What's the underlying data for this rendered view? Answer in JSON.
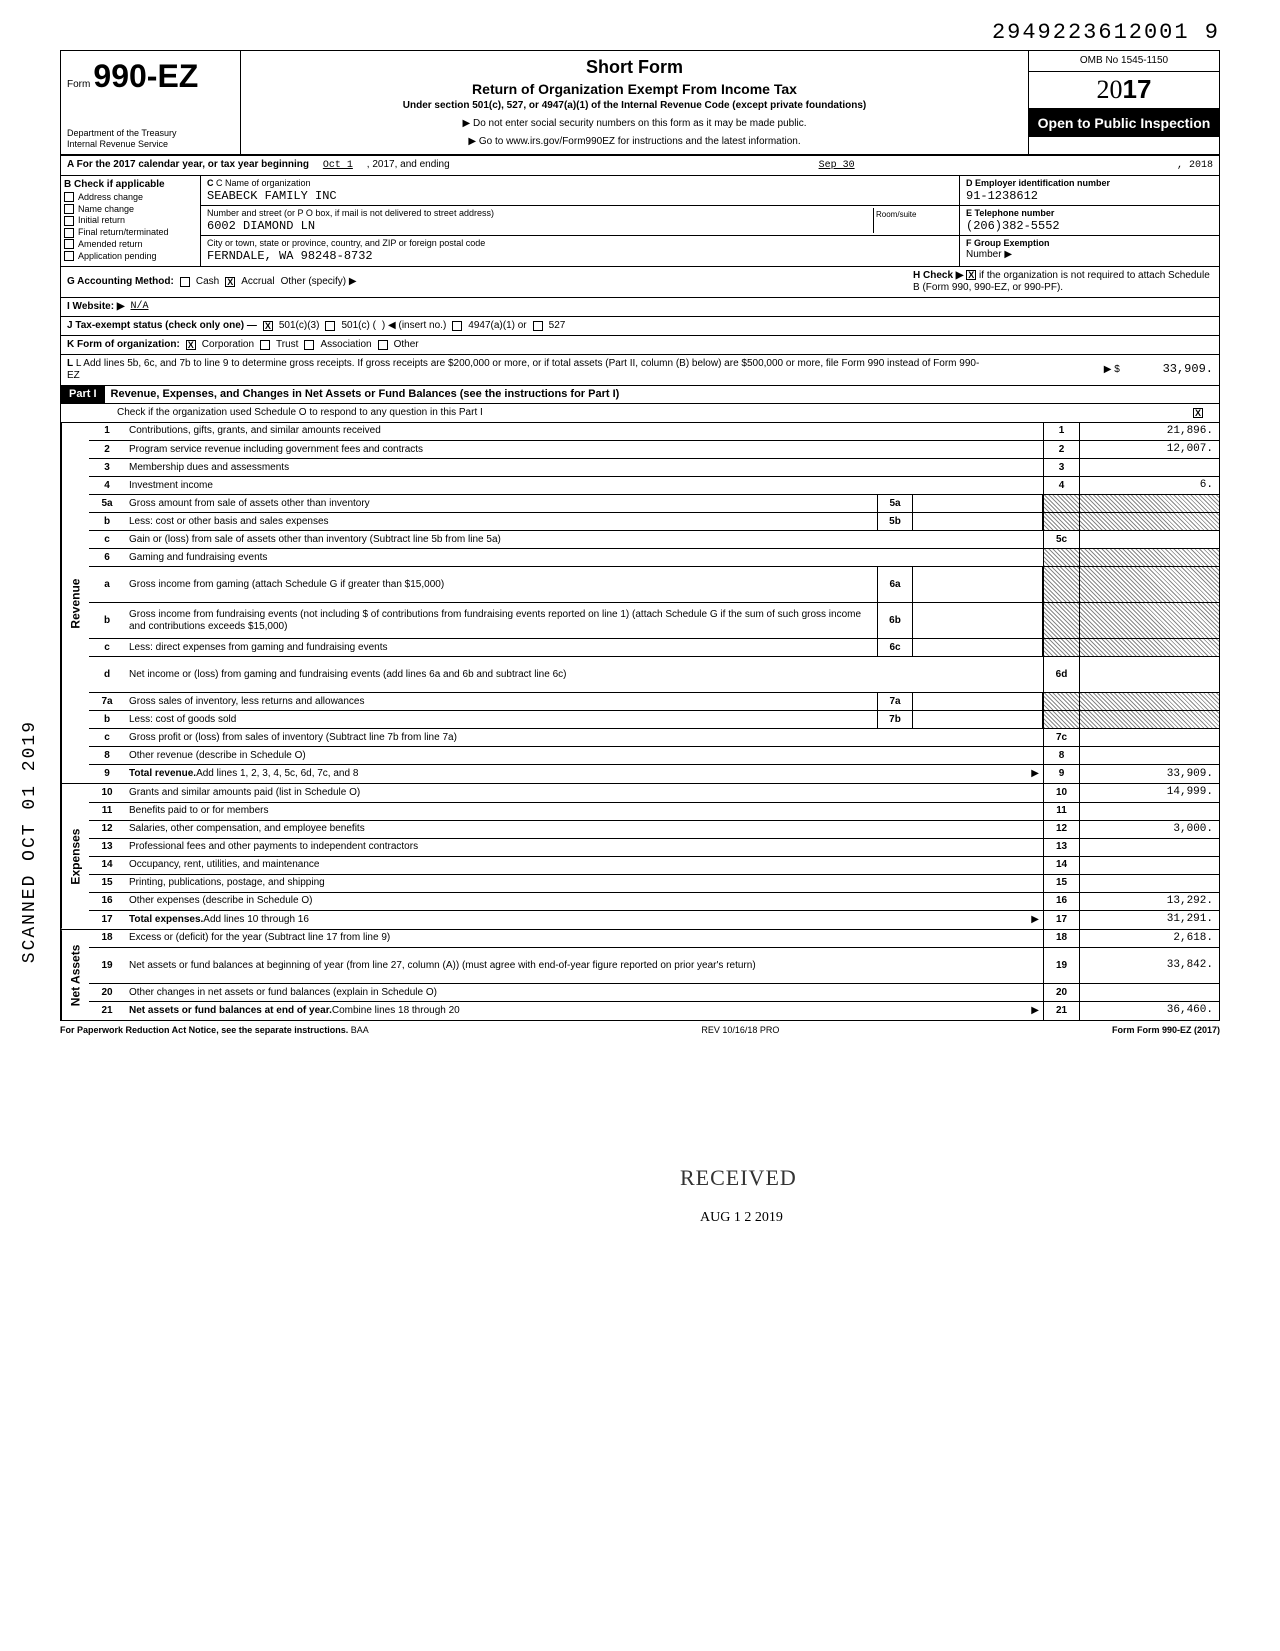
{
  "top_id": "2949223612001 9",
  "form": {
    "prefix": "Form",
    "number": "990-EZ",
    "dept": "Department of the Treasury\nInternal Revenue Service"
  },
  "title": {
    "short": "Short Form",
    "main": "Return of Organization Exempt From Income Tax",
    "under": "Under section 501(c), 527, or 4947(a)(1) of the Internal Revenue Code (except private foundations)",
    "note1": "▶ Do not enter social security numbers on this form as it may be made public.",
    "note2": "▶ Go to www.irs.gov/Form990EZ for instructions and the latest information."
  },
  "right": {
    "omb": "OMB No 1545-1150",
    "year_prefix": "20",
    "year_suffix": "17",
    "inspection": "Open to Public Inspection"
  },
  "line_a": {
    "text": "A For the 2017 calendar year, or tax year beginning",
    "begin": "Oct 1",
    "mid": ", 2017, and ending",
    "end_month": "Sep 30",
    "end_year": ", 2018"
  },
  "section_b": {
    "header": "B Check if applicable",
    "items": [
      "Address change",
      "Name change",
      "Initial return",
      "Final return/terminated",
      "Amended return",
      "Application pending"
    ]
  },
  "section_c": {
    "name_lbl": "C Name of organization",
    "name": "SEABECK FAMILY INC",
    "addr_lbl": "Number and street (or P O box, if mail is not delivered to street address)",
    "addr": "6002 DIAMOND LN",
    "room_lbl": "Room/suite",
    "city_lbl": "City or town, state or province, country, and ZIP or foreign postal code",
    "city": "FERNDALE, WA 98248-8732"
  },
  "section_d": {
    "lbl": "D Employer identification number",
    "val": "91-1238612"
  },
  "section_e": {
    "lbl": "E Telephone number",
    "val": "(206)382-5552"
  },
  "section_f": {
    "lbl": "F Group Exemption",
    "lbl2": "Number ▶",
    "val": ""
  },
  "line_g": {
    "prefix": "G Accounting Method:",
    "cash": "Cash",
    "accrual": "Accrual",
    "other": "Other (specify) ▶"
  },
  "line_h": {
    "text": "H Check ▶",
    "after": "if the organization is not required to attach Schedule B (Form 990, 990-EZ, or 990-PF)."
  },
  "line_i": {
    "lbl": "I Website: ▶",
    "val": "N/A"
  },
  "line_j": {
    "prefix": "J Tax-exempt status (check only one) —",
    "opt1": "501(c)(3)",
    "opt2": "501(c) (",
    "insert": ") ◀ (insert no.)",
    "opt3": "4947(a)(1) or",
    "opt4": "527"
  },
  "line_k": {
    "prefix": "K Form of organization:",
    "opts": [
      "Corporation",
      "Trust",
      "Association",
      "Other"
    ]
  },
  "line_l": {
    "text": "L Add lines 5b, 6c, and 7b to line 9 to determine gross receipts. If gross receipts are $200,000 or more, or if total assets (Part II, column (B) below) are $500,000 or more, file Form 990 instead of Form 990-EZ",
    "arrow": "▶ $",
    "val": "33,909."
  },
  "part1": {
    "label": "Part I",
    "title": "Revenue, Expenses, and Changes in Net Assets or Fund Balances (see the instructions for Part I)",
    "check_line": "Check if the organization used Schedule O to respond to any question in this Part I"
  },
  "sections": {
    "revenue": "Revenue",
    "expenses": "Expenses",
    "netassets": "Net Assets"
  },
  "rows": [
    {
      "n": "1",
      "d": "Contributions, gifts, grants, and similar amounts received",
      "bn": "1",
      "bv": "21,896."
    },
    {
      "n": "2",
      "d": "Program service revenue including government fees and contracts",
      "bn": "2",
      "bv": "12,007."
    },
    {
      "n": "3",
      "d": "Membership dues and assessments",
      "bn": "3",
      "bv": ""
    },
    {
      "n": "4",
      "d": "Investment income",
      "bn": "4",
      "bv": "6."
    },
    {
      "n": "5a",
      "d": "Gross amount from sale of assets other than inventory",
      "mn": "5a",
      "mv": "",
      "shaded": true
    },
    {
      "n": "b",
      "d": "Less: cost or other basis and sales expenses",
      "mn": "5b",
      "mv": "",
      "shaded": true
    },
    {
      "n": "c",
      "d": "Gain or (loss) from sale of assets other than inventory (Subtract line 5b from line 5a)",
      "bn": "5c",
      "bv": ""
    },
    {
      "n": "6",
      "d": "Gaming and fundraising events",
      "shaded_full": true
    },
    {
      "n": "a",
      "d": "Gross income from gaming (attach Schedule G if greater than $15,000)",
      "mn": "6a",
      "mv": "",
      "shaded": true,
      "tall": true
    },
    {
      "n": "b",
      "d": "Gross income from fundraising events (not including  $                    of contributions from fundraising events reported on line 1) (attach Schedule G if the sum of such gross income and contributions exceeds $15,000)",
      "mn": "6b",
      "mv": "",
      "shaded": true,
      "tall": true
    },
    {
      "n": "c",
      "d": "Less: direct expenses from gaming and fundraising events",
      "mn": "6c",
      "mv": "",
      "shaded": true
    },
    {
      "n": "d",
      "d": "Net income or (loss) from gaming and fundraising events (add lines 6a and 6b and subtract line 6c)",
      "bn": "6d",
      "bv": "",
      "tall": true
    },
    {
      "n": "7a",
      "d": "Gross sales of inventory, less returns and allowances",
      "mn": "7a",
      "mv": "",
      "shaded": true
    },
    {
      "n": "b",
      "d": "Less: cost of goods sold",
      "mn": "7b",
      "mv": "",
      "shaded": true
    },
    {
      "n": "c",
      "d": "Gross profit or (loss) from sales of inventory (Subtract line 7b from line 7a)",
      "bn": "7c",
      "bv": ""
    },
    {
      "n": "8",
      "d": "Other revenue (describe in Schedule O)",
      "bn": "8",
      "bv": ""
    },
    {
      "n": "9",
      "d": "Total revenue. Add lines 1, 2, 3, 4, 5c, 6d, 7c, and 8",
      "bn": "9",
      "bv": "33,909.",
      "bold": true,
      "arrow": true
    }
  ],
  "exp_rows": [
    {
      "n": "10",
      "d": "Grants and similar amounts paid (list in Schedule O)",
      "bn": "10",
      "bv": "14,999."
    },
    {
      "n": "11",
      "d": "Benefits paid to or for members",
      "bn": "11",
      "bv": ""
    },
    {
      "n": "12",
      "d": "Salaries, other compensation, and employee benefits",
      "bn": "12",
      "bv": "3,000."
    },
    {
      "n": "13",
      "d": "Professional fees and other payments to independent contractors",
      "bn": "13",
      "bv": ""
    },
    {
      "n": "14",
      "d": "Occupancy, rent, utilities, and maintenance",
      "bn": "14",
      "bv": ""
    },
    {
      "n": "15",
      "d": "Printing, publications, postage, and shipping",
      "bn": "15",
      "bv": ""
    },
    {
      "n": "16",
      "d": "Other expenses (describe in Schedule O)",
      "bn": "16",
      "bv": "13,292."
    },
    {
      "n": "17",
      "d": "Total expenses. Add lines 10 through 16",
      "bn": "17",
      "bv": "31,291.",
      "bold": true,
      "arrow": true
    }
  ],
  "na_rows": [
    {
      "n": "18",
      "d": "Excess or (deficit) for the year (Subtract line 17 from line 9)",
      "bn": "18",
      "bv": "2,618."
    },
    {
      "n": "19",
      "d": "Net assets or fund balances at beginning of year (from line 27, column (A)) (must agree with end-of-year figure reported on prior year's return)",
      "bn": "19",
      "bv": "33,842.",
      "tall": true
    },
    {
      "n": "20",
      "d": "Other changes in net assets or fund balances (explain in Schedule O)",
      "bn": "20",
      "bv": ""
    },
    {
      "n": "21",
      "d": "Net assets or fund balances at end of year. Combine lines 18 through 20",
      "bn": "21",
      "bv": "36,460.",
      "bold": true,
      "arrow": true
    }
  ],
  "footer": {
    "left": "For Paperwork Reduction Act Notice, see the separate instructions.",
    "mid": "BAA",
    "rev": "REV 10/16/18 PRO",
    "right": "Form 990-EZ (2017)"
  },
  "stamps": {
    "scanned": "SCANNED OCT 01 2019",
    "received": "RECEIVED",
    "received_date": "AUG 1 2 2019"
  }
}
